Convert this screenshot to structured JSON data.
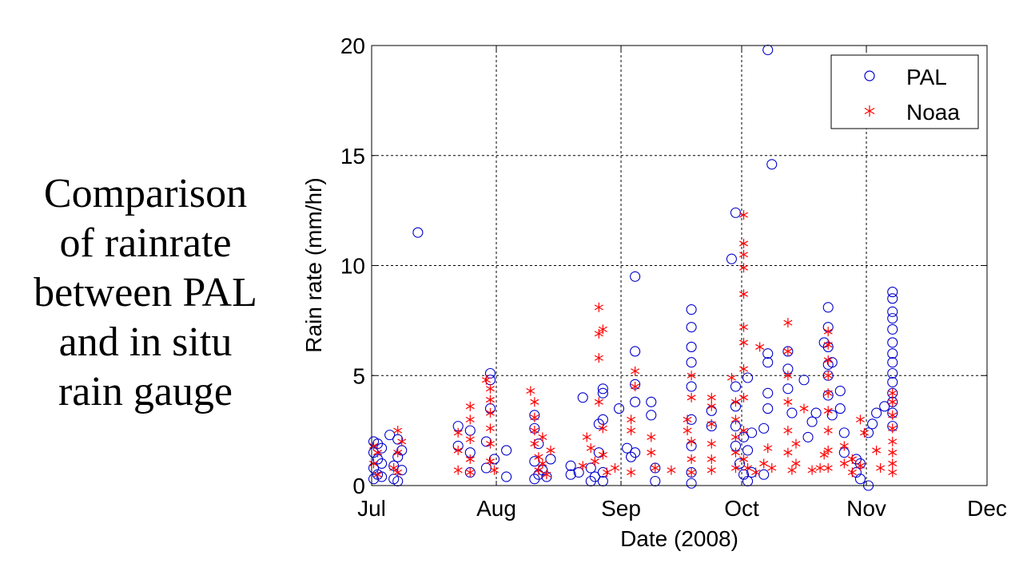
{
  "caption": {
    "lines": [
      "Comparison",
      "of rainrate",
      "between PAL",
      "and in situ",
      "rain gauge"
    ]
  },
  "chart_data": {
    "type": "scatter",
    "title": "",
    "xlabel": "Date (2008)",
    "ylabel": "Rain rate (mm/hr)",
    "x_ticks": [
      "Jul",
      "Aug",
      "Sep",
      "Oct",
      "Nov",
      "Dec"
    ],
    "x_tick_dates": [
      "2008-07-01",
      "2008-08-01",
      "2008-09-01",
      "2008-10-01",
      "2008-11-01",
      "2008-12-01"
    ],
    "xlim": [
      "2008-07-01",
      "2008-12-01"
    ],
    "y_ticks": [
      0,
      5,
      10,
      15,
      20
    ],
    "ylim": [
      0,
      20
    ],
    "grid": true,
    "legend_position": "top-right",
    "series": [
      {
        "name": "PAL",
        "marker": "circle",
        "color": "#0000cc",
        "points": [
          [
            "2008-07-01",
            0.3
          ],
          [
            "2008-07-01",
            0.8
          ],
          [
            "2008-07-01",
            1.5
          ],
          [
            "2008-07-01",
            2.0
          ],
          [
            "2008-07-02",
            0.5
          ],
          [
            "2008-07-02",
            1.2
          ],
          [
            "2008-07-02",
            1.9
          ],
          [
            "2008-07-03",
            0.4
          ],
          [
            "2008-07-03",
            1.0
          ],
          [
            "2008-07-03",
            1.7
          ],
          [
            "2008-07-05",
            2.3
          ],
          [
            "2008-07-06",
            0.3
          ],
          [
            "2008-07-06",
            0.9
          ],
          [
            "2008-07-07",
            0.2
          ],
          [
            "2008-07-07",
            1.3
          ],
          [
            "2008-07-07",
            2.1
          ],
          [
            "2008-07-08",
            0.7
          ],
          [
            "2008-07-08",
            1.6
          ],
          [
            "2008-07-12",
            11.5
          ],
          [
            "2008-07-22",
            2.7
          ],
          [
            "2008-07-22",
            1.8
          ],
          [
            "2008-07-25",
            0.6
          ],
          [
            "2008-07-25",
            1.5
          ],
          [
            "2008-07-25",
            2.5
          ],
          [
            "2008-07-29",
            0.8
          ],
          [
            "2008-07-29",
            2.0
          ],
          [
            "2008-07-30",
            3.5
          ],
          [
            "2008-07-30",
            4.8
          ],
          [
            "2008-07-30",
            5.1
          ],
          [
            "2008-07-31",
            1.2
          ],
          [
            "2008-08-03",
            1.6
          ],
          [
            "2008-08-03",
            0.4
          ],
          [
            "2008-08-10",
            0.3
          ],
          [
            "2008-08-10",
            1.1
          ],
          [
            "2008-08-10",
            2.6
          ],
          [
            "2008-08-10",
            3.2
          ],
          [
            "2008-08-11",
            0.5
          ],
          [
            "2008-08-11",
            1.9
          ],
          [
            "2008-08-12",
            0.7
          ],
          [
            "2008-08-13",
            0.4
          ],
          [
            "2008-08-14",
            1.2
          ],
          [
            "2008-08-19",
            0.9
          ],
          [
            "2008-08-19",
            0.5
          ],
          [
            "2008-08-21",
            0.6
          ],
          [
            "2008-08-22",
            4.0
          ],
          [
            "2008-08-24",
            0.2
          ],
          [
            "2008-08-24",
            0.8
          ],
          [
            "2008-08-25",
            0.4
          ],
          [
            "2008-08-26",
            1.5
          ],
          [
            "2008-08-26",
            2.8
          ],
          [
            "2008-08-27",
            4.4
          ],
          [
            "2008-08-27",
            4.2
          ],
          [
            "2008-08-27",
            3.0
          ],
          [
            "2008-08-27",
            0.6
          ],
          [
            "2008-08-27",
            0.2
          ],
          [
            "2008-08-31",
            3.5
          ],
          [
            "2008-09-02",
            1.7
          ],
          [
            "2008-09-03",
            1.3
          ],
          [
            "2008-09-04",
            9.5
          ],
          [
            "2008-09-04",
            6.1
          ],
          [
            "2008-09-04",
            4.6
          ],
          [
            "2008-09-04",
            3.8
          ],
          [
            "2008-09-04",
            1.5
          ],
          [
            "2008-09-08",
            3.8
          ],
          [
            "2008-09-08",
            3.2
          ],
          [
            "2008-09-09",
            0.8
          ],
          [
            "2008-09-09",
            0.2
          ],
          [
            "2008-09-18",
            8.0
          ],
          [
            "2008-09-18",
            7.2
          ],
          [
            "2008-09-18",
            6.3
          ],
          [
            "2008-09-18",
            5.6
          ],
          [
            "2008-09-18",
            4.5
          ],
          [
            "2008-09-18",
            3.0
          ],
          [
            "2008-09-18",
            1.8
          ],
          [
            "2008-09-18",
            0.6
          ],
          [
            "2008-09-18",
            0.1
          ],
          [
            "2008-09-23",
            2.7
          ],
          [
            "2008-09-23",
            3.4
          ],
          [
            "2008-09-29",
            12.4
          ],
          [
            "2008-09-28",
            10.3
          ],
          [
            "2008-09-29",
            4.5
          ],
          [
            "2008-09-29",
            3.6
          ],
          [
            "2008-09-29",
            2.7
          ],
          [
            "2008-09-29",
            1.8
          ],
          [
            "2008-09-30",
            1.0
          ],
          [
            "2008-10-01",
            2.2
          ],
          [
            "2008-10-01",
            0.5
          ],
          [
            "2008-10-02",
            0.2
          ],
          [
            "2008-10-02",
            4.9
          ],
          [
            "2008-10-02",
            1.6
          ],
          [
            "2008-10-03",
            2.4
          ],
          [
            "2008-10-03",
            0.6
          ],
          [
            "2008-10-07",
            19.8
          ],
          [
            "2008-10-08",
            14.6
          ],
          [
            "2008-10-07",
            6.0
          ],
          [
            "2008-10-07",
            5.6
          ],
          [
            "2008-10-07",
            4.2
          ],
          [
            "2008-10-07",
            3.5
          ],
          [
            "2008-10-06",
            2.6
          ],
          [
            "2008-10-06",
            0.5
          ],
          [
            "2008-10-12",
            6.1
          ],
          [
            "2008-10-12",
            5.3
          ],
          [
            "2008-10-12",
            4.4
          ],
          [
            "2008-10-13",
            3.3
          ],
          [
            "2008-10-16",
            4.8
          ],
          [
            "2008-10-17",
            2.2
          ],
          [
            "2008-10-18",
            2.9
          ],
          [
            "2008-10-19",
            3.3
          ],
          [
            "2008-10-21",
            6.5
          ],
          [
            "2008-10-22",
            8.1
          ],
          [
            "2008-10-22",
            7.2
          ],
          [
            "2008-10-22",
            6.3
          ],
          [
            "2008-10-22",
            5.5
          ],
          [
            "2008-10-22",
            5.0
          ],
          [
            "2008-10-22",
            4.1
          ],
          [
            "2008-10-23",
            5.6
          ],
          [
            "2008-10-23",
            3.2
          ],
          [
            "2008-10-25",
            4.3
          ],
          [
            "2008-10-25",
            3.5
          ],
          [
            "2008-10-26",
            2.4
          ],
          [
            "2008-10-26",
            1.5
          ],
          [
            "2008-10-29",
            1.2
          ],
          [
            "2008-10-29",
            0.6
          ],
          [
            "2008-10-30",
            0.3
          ],
          [
            "2008-10-30",
            1.0
          ],
          [
            "2008-11-01",
            0.0
          ],
          [
            "2008-11-01",
            2.4
          ],
          [
            "2008-11-02",
            2.8
          ],
          [
            "2008-11-03",
            3.3
          ],
          [
            "2008-11-05",
            3.6
          ],
          [
            "2008-11-07",
            8.8
          ],
          [
            "2008-11-07",
            8.5
          ],
          [
            "2008-11-07",
            7.9
          ],
          [
            "2008-11-07",
            7.6
          ],
          [
            "2008-11-07",
            7.1
          ],
          [
            "2008-11-07",
            6.5
          ],
          [
            "2008-11-07",
            6.0
          ],
          [
            "2008-11-07",
            5.6
          ],
          [
            "2008-11-07",
            5.1
          ],
          [
            "2008-11-07",
            4.7
          ],
          [
            "2008-11-07",
            4.2
          ],
          [
            "2008-11-07",
            3.8
          ],
          [
            "2008-11-07",
            3.3
          ],
          [
            "2008-11-07",
            2.7
          ]
        ]
      },
      {
        "name": "Noaa",
        "marker": "asterisk",
        "color": "#ff0000",
        "points": [
          [
            "2008-07-01",
            1.8
          ],
          [
            "2008-07-01",
            1.0
          ],
          [
            "2008-07-02",
            0.5
          ],
          [
            "2008-07-02",
            1.5
          ],
          [
            "2008-07-06",
            0.8
          ],
          [
            "2008-07-07",
            2.5
          ],
          [
            "2008-07-07",
            1.5
          ],
          [
            "2008-07-07",
            0.6
          ],
          [
            "2008-07-08",
            2.0
          ],
          [
            "2008-07-22",
            2.4
          ],
          [
            "2008-07-22",
            1.6
          ],
          [
            "2008-07-22",
            0.7
          ],
          [
            "2008-07-25",
            3.6
          ],
          [
            "2008-07-25",
            3.0
          ],
          [
            "2008-07-25",
            2.1
          ],
          [
            "2008-07-25",
            1.2
          ],
          [
            "2008-07-25",
            0.6
          ],
          [
            "2008-07-29",
            4.8
          ],
          [
            "2008-07-30",
            4.4
          ],
          [
            "2008-07-30",
            3.9
          ],
          [
            "2008-07-30",
            3.3
          ],
          [
            "2008-07-30",
            2.6
          ],
          [
            "2008-07-30",
            1.9
          ],
          [
            "2008-07-30",
            1.1
          ],
          [
            "2008-07-31",
            0.7
          ],
          [
            "2008-08-09",
            4.3
          ],
          [
            "2008-08-10",
            3.8
          ],
          [
            "2008-08-10",
            3.1
          ],
          [
            "2008-08-10",
            2.5
          ],
          [
            "2008-08-10",
            1.9
          ],
          [
            "2008-08-11",
            1.3
          ],
          [
            "2008-08-11",
            0.7
          ],
          [
            "2008-08-12",
            2.2
          ],
          [
            "2008-08-12",
            1.0
          ],
          [
            "2008-08-13",
            0.5
          ],
          [
            "2008-08-14",
            1.6
          ],
          [
            "2008-08-22",
            0.9
          ],
          [
            "2008-08-23",
            2.2
          ],
          [
            "2008-08-24",
            1.7
          ],
          [
            "2008-08-25",
            1.1
          ],
          [
            "2008-08-26",
            8.1
          ],
          [
            "2008-08-27",
            7.1
          ],
          [
            "2008-08-26",
            6.9
          ],
          [
            "2008-08-26",
            5.8
          ],
          [
            "2008-08-26",
            3.8
          ],
          [
            "2008-08-27",
            2.6
          ],
          [
            "2008-08-27",
            1.4
          ],
          [
            "2008-08-28",
            0.6
          ],
          [
            "2008-08-30",
            0.8
          ],
          [
            "2008-09-04",
            5.2
          ],
          [
            "2008-09-04",
            4.5
          ],
          [
            "2008-09-03",
            3.0
          ],
          [
            "2008-09-03",
            2.5
          ],
          [
            "2008-09-03",
            0.6
          ],
          [
            "2008-09-08",
            2.2
          ],
          [
            "2008-09-08",
            1.5
          ],
          [
            "2008-09-09",
            0.8
          ],
          [
            "2008-09-13",
            0.7
          ],
          [
            "2008-09-17",
            3.0
          ],
          [
            "2008-09-17",
            2.5
          ],
          [
            "2008-09-18",
            5.0
          ],
          [
            "2008-09-18",
            4.0
          ],
          [
            "2008-09-18",
            2.0
          ],
          [
            "2008-09-18",
            1.2
          ],
          [
            "2008-09-18",
            0.6
          ],
          [
            "2008-09-23",
            4.0
          ],
          [
            "2008-09-23",
            3.6
          ],
          [
            "2008-09-23",
            2.8
          ],
          [
            "2008-09-23",
            1.9
          ],
          [
            "2008-09-23",
            1.2
          ],
          [
            "2008-09-23",
            0.7
          ],
          [
            "2008-09-28",
            4.9
          ],
          [
            "2008-09-29",
            3.8
          ],
          [
            "2008-09-29",
            3.0
          ],
          [
            "2008-09-29",
            2.2
          ],
          [
            "2008-09-29",
            1.5
          ],
          [
            "2008-09-29",
            0.8
          ],
          [
            "2008-10-01",
            12.3
          ],
          [
            "2008-10-01",
            11.0
          ],
          [
            "2008-10-01",
            10.5
          ],
          [
            "2008-10-01",
            9.9
          ],
          [
            "2008-10-01",
            8.7
          ],
          [
            "2008-10-01",
            7.2
          ],
          [
            "2008-10-01",
            6.5
          ],
          [
            "2008-10-01",
            5.3
          ],
          [
            "2008-10-01",
            4.0
          ],
          [
            "2008-10-01",
            2.5
          ],
          [
            "2008-10-01",
            1.2
          ],
          [
            "2008-10-02",
            0.8
          ],
          [
            "2008-10-04",
            0.6
          ],
          [
            "2008-10-05",
            6.3
          ],
          [
            "2008-10-06",
            1.0
          ],
          [
            "2008-10-07",
            1.7
          ],
          [
            "2008-10-08",
            0.8
          ],
          [
            "2008-10-12",
            7.4
          ],
          [
            "2008-10-12",
            6.1
          ],
          [
            "2008-10-12",
            5.0
          ],
          [
            "2008-10-12",
            3.8
          ],
          [
            "2008-10-12",
            2.5
          ],
          [
            "2008-10-12",
            1.5
          ],
          [
            "2008-10-13",
            0.7
          ],
          [
            "2008-10-14",
            1.9
          ],
          [
            "2008-10-14",
            1.0
          ],
          [
            "2008-10-16",
            3.5
          ],
          [
            "2008-10-18",
            0.7
          ],
          [
            "2008-10-20",
            0.8
          ],
          [
            "2008-10-21",
            1.4
          ],
          [
            "2008-10-22",
            7.0
          ],
          [
            "2008-10-22",
            6.4
          ],
          [
            "2008-10-22",
            5.7
          ],
          [
            "2008-10-22",
            5.0
          ],
          [
            "2008-10-22",
            4.2
          ],
          [
            "2008-10-22",
            3.4
          ],
          [
            "2008-10-22",
            2.5
          ],
          [
            "2008-10-22",
            1.6
          ],
          [
            "2008-10-22",
            0.8
          ],
          [
            "2008-10-26",
            1.8
          ],
          [
            "2008-10-26",
            1.0
          ],
          [
            "2008-10-28",
            1.2
          ],
          [
            "2008-10-28",
            0.6
          ],
          [
            "2008-10-30",
            0.9
          ],
          [
            "2008-10-30",
            3.0
          ],
          [
            "2008-10-31",
            2.4
          ],
          [
            "2008-11-03",
            1.6
          ],
          [
            "2008-11-04",
            0.8
          ],
          [
            "2008-11-07",
            4.2
          ],
          [
            "2008-11-07",
            3.8
          ],
          [
            "2008-11-07",
            3.2
          ],
          [
            "2008-11-07",
            2.6
          ],
          [
            "2008-11-07",
            2.0
          ],
          [
            "2008-11-07",
            1.5
          ],
          [
            "2008-11-07",
            1.0
          ],
          [
            "2008-11-07",
            0.6
          ]
        ]
      }
    ]
  }
}
